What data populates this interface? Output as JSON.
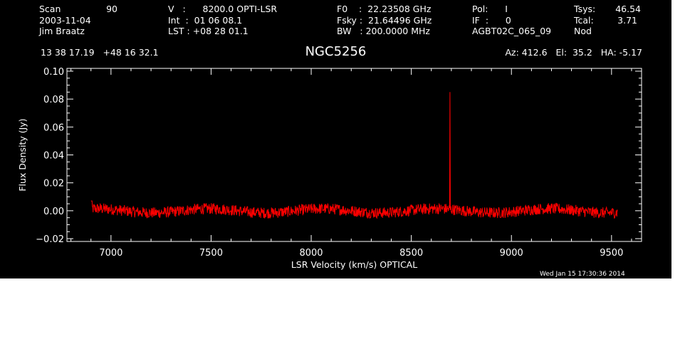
{
  "header": {
    "col1": {
      "r1_label": "Scan",
      "r1_value": "90",
      "r2": "2003-11-04",
      "r3": "Jim Braatz"
    },
    "col2": {
      "r1": "V   :      8200.0 OPTI-LSR",
      "r2": "Int  :  01 06 08.1",
      "r3": "LST : +08 28 01.1"
    },
    "col3": {
      "r1": "F0    :  22.23508 GHz",
      "r2": "Fsky :  21.64496 GHz",
      "r3": "BW   : 200.0000 MHz"
    },
    "col4": {
      "r1": "Pol:      I",
      "r2": "IF  :      0",
      "r3": "AGBT02C_065_09"
    },
    "col5": {
      "r1_label": "Tsys:",
      "r1_value": "46.54",
      "r2_label": "Tcal:",
      "r2_value": "3.71",
      "r3": "Nod"
    },
    "coords": "13 38 17.19   +48 16 32.1",
    "pointing": "Az: 412.6   El:  35.2   HA: -5.17"
  },
  "timestamp": "Wed Jan 15 17:30:36 2014",
  "colors": {
    "background": "#000000",
    "axes": "#ffffff",
    "series": "#ff0000"
  },
  "chart_data": {
    "type": "line",
    "title": "NGC5256",
    "xlabel": "LSR Velocity (km/s) OPTICAL",
    "ylabel": "Flux Density (Jy)",
    "xlim": [
      6780,
      9650
    ],
    "ylim": [
      -0.022,
      0.102
    ],
    "xticks": [
      7000,
      7500,
      8000,
      8500,
      9000,
      9500
    ],
    "xtick_labels": [
      "7000",
      "7500",
      "8000",
      "8500",
      "9000",
      "9500"
    ],
    "yticks": [
      -0.02,
      0.0,
      0.02,
      0.04,
      0.06,
      0.08,
      0.1
    ],
    "ytick_labels": [
      "−0.02",
      "0.00",
      "0.02",
      "0.04",
      "0.06",
      "0.08",
      "0.10"
    ],
    "grid": false,
    "series": [
      {
        "x_start": 6900,
        "x_end": 9530,
        "baseline": 0.0,
        "noise_amplitude": 0.004,
        "features": [
          {
            "x": 8693,
            "y": 0.085,
            "note": "narrow spike"
          }
        ]
      }
    ]
  }
}
